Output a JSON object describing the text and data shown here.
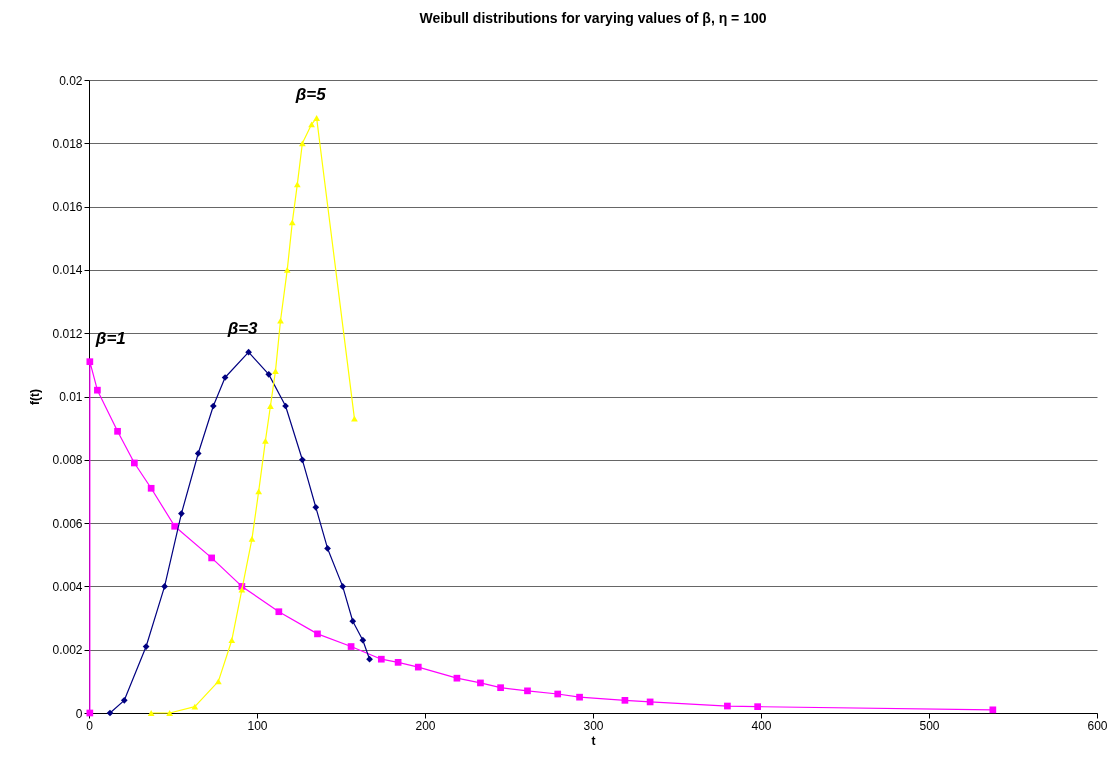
{
  "chart_data": {
    "type": "line",
    "title": "Weibull distributions for varying values of β, η = 100",
    "xlabel": "t",
    "ylabel": "f(t)",
    "xlim": [
      0,
      600
    ],
    "xticks": [
      0,
      100,
      200,
      300,
      400,
      500,
      600
    ],
    "ylim": [
      0,
      0.02
    ],
    "yticks": [
      0,
      0.002,
      0.004,
      0.006,
      0.008,
      0.01,
      0.012,
      0.014,
      0.016,
      0.018,
      0.02
    ],
    "grid": "y",
    "line_style": "solid",
    "series": [
      {
        "name": "β=1",
        "color": "#ff00ff",
        "marker": "square",
        "x": [
          0.5,
          0.5,
          5,
          17,
          27,
          37,
          51,
          73,
          91,
          113,
          136,
          156,
          174,
          184,
          196,
          219,
          233,
          245,
          261,
          279,
          292,
          319,
          334,
          380,
          398,
          538
        ],
        "values": [
          0,
          0.0111,
          0.0102,
          0.0089,
          0.0079,
          0.0071,
          0.0059,
          0.0049,
          0.004,
          0.0032,
          0.0025,
          0.0021,
          0.0017,
          0.0016,
          0.00145,
          0.0011,
          0.00095,
          0.0008,
          0.0007,
          0.0006,
          0.0005,
          0.0004,
          0.00035,
          0.00022,
          0.0002,
          0.0001
        ]
      },
      {
        "name": "β=3",
        "color": "#000080",
        "marker": "diamond",
        "x": [
          12.5,
          21,
          34,
          45,
          55,
          65,
          74,
          81,
          95,
          107,
          117,
          127,
          135,
          142,
          151,
          157,
          163,
          167
        ],
        "values": [
          0,
          0.0004,
          0.0021,
          0.004,
          0.0063,
          0.0082,
          0.0097,
          0.0106,
          0.0114,
          0.0107,
          0.0097,
          0.008,
          0.0065,
          0.0052,
          0.004,
          0.0029,
          0.0023,
          0.0017
        ]
      },
      {
        "name": "β=5",
        "color": "#ffff00",
        "marker": "triangle",
        "x": [
          37,
          48,
          63,
          77,
          85,
          91,
          97,
          101,
          105,
          108,
          111,
          114,
          118,
          121,
          124,
          127,
          132.5,
          135.5,
          158
        ],
        "values": [
          0,
          0,
          0.0002,
          0.001,
          0.0023,
          0.0039,
          0.0055,
          0.007,
          0.0086,
          0.0097,
          0.0108,
          0.0124,
          0.014,
          0.0155,
          0.0167,
          0.018,
          0.0186,
          0.0188,
          0.0093
        ]
      }
    ]
  }
}
